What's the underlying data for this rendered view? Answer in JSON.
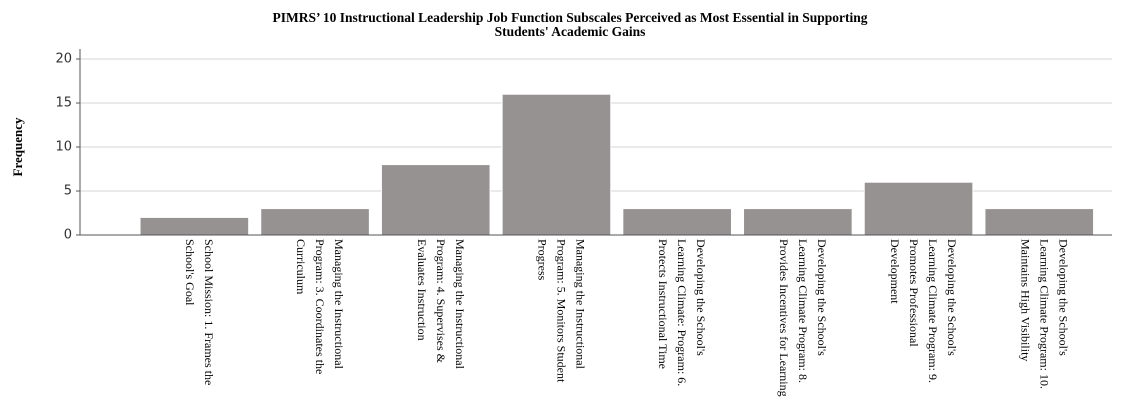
{
  "chart_data": {
    "type": "bar",
    "title": "PIMRS’ 10 Instructional Leadership Job Function Subscales Perceived as Most Essential in Supporting\nStudents' Academic Gains",
    "ylabel": "Frequency",
    "categories": [
      "School Mission: 1. Frames the\nSchool's Goal",
      "Managing the Instructional\nProgram: 3. Coordinates the\nCurriculum",
      "Managing the Instructional\nProgram: 4. Supervises &\nEvaluates Instruction",
      "Managing the Instructional\nProgram: 5. Monitors Student\nProgress",
      "Developing the School's\nLearning Climate: Program: 6.\nProtects Instructional Time",
      "Developing the School's\nLearning Climate Program: 8.\nProvides Incentives for Learning",
      "Developing the School's\nLearning Climate Program: 9.\nPromotes Professional\nDevelopment",
      "Developing the School's\nLearning Climate Program: 10.\nMaintains High Visibility"
    ],
    "values": [
      2,
      3,
      8,
      16,
      3,
      3,
      6,
      3
    ],
    "color": "#969292",
    "ylim": [
      0,
      20
    ],
    "yticks": [
      0,
      5,
      10,
      15,
      20
    ],
    "grid": true
  }
}
